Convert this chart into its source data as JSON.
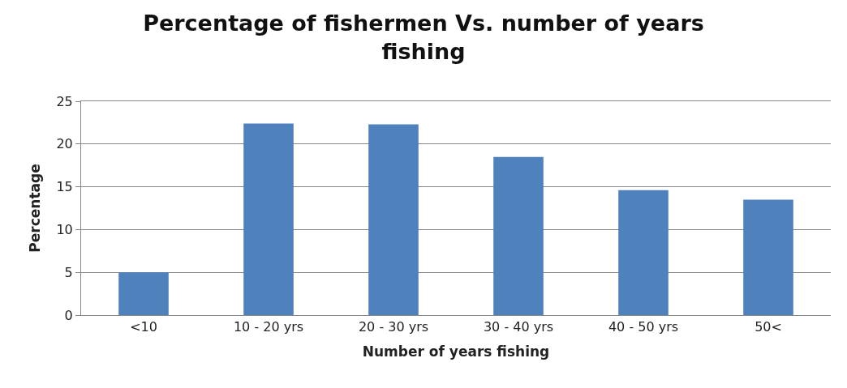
{
  "chart_data": {
    "type": "bar",
    "title": "Percentage of fishermen Vs. number of years fishing",
    "xlabel": "Number of years fishing",
    "ylabel": "Percentage",
    "categories": [
      "<10",
      "10 - 20 yrs",
      "20 - 30 yrs",
      "30 - 40 yrs",
      "40 - 50 yrs",
      "50<"
    ],
    "values": [
      5.0,
      22.4,
      22.3,
      18.5,
      14.6,
      13.5
    ],
    "color": "#4f81bd",
    "ylim": [
      0,
      25
    ],
    "yticks": [
      0,
      5,
      10,
      15,
      20,
      25
    ],
    "grid": "y"
  }
}
